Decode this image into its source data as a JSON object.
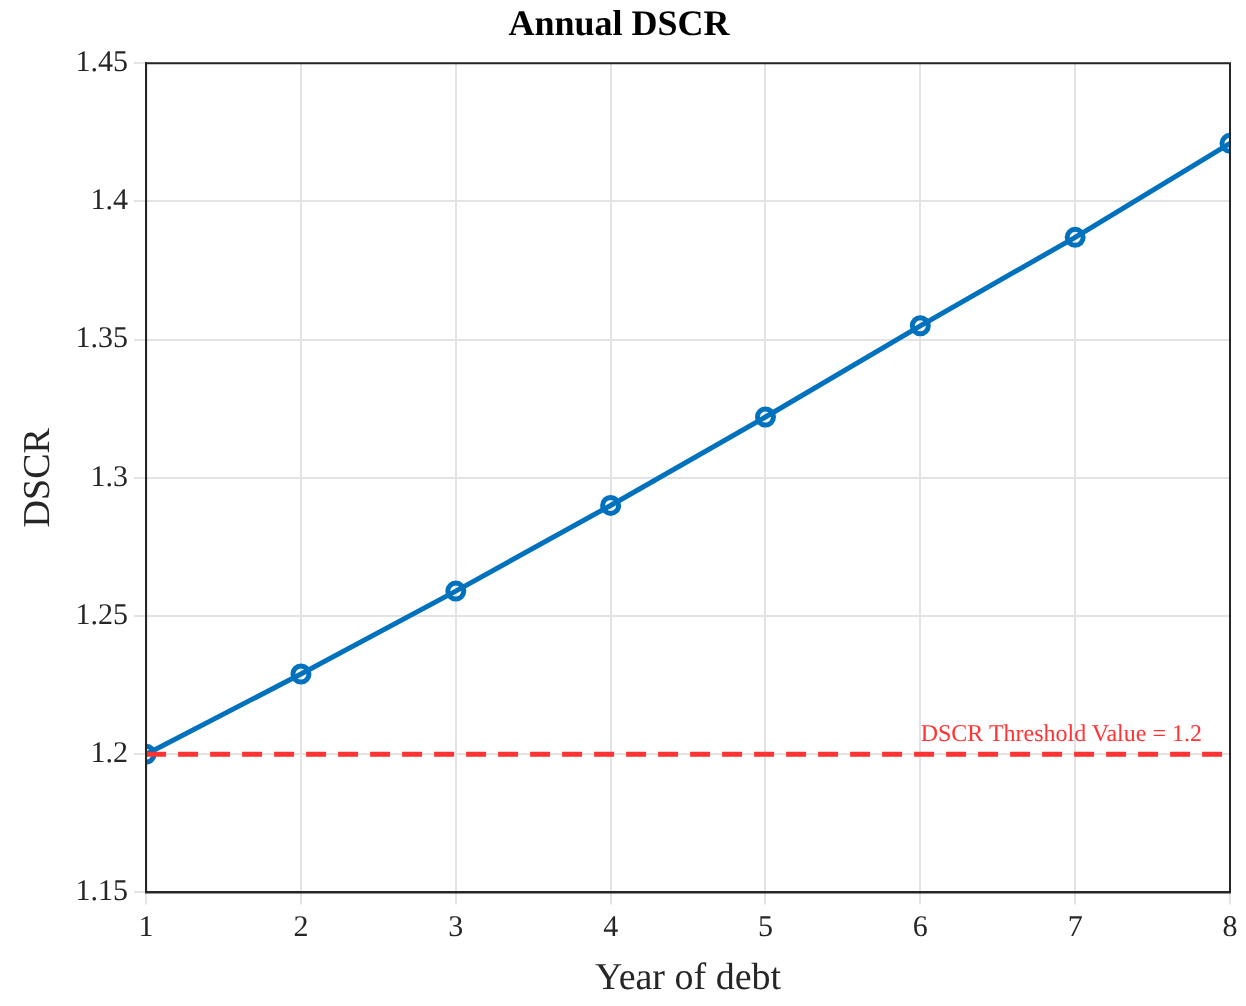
{
  "chart_data": {
    "type": "line",
    "title": "Annual DSCR",
    "xlabel": "Year of debt",
    "ylabel": "DSCR",
    "x": [
      1,
      2,
      3,
      4,
      5,
      6,
      7,
      8
    ],
    "series": [
      {
        "color": "#0072bd",
        "values": [
          1.2,
          1.229,
          1.259,
          1.29,
          1.322,
          1.355,
          1.387,
          1.421
        ]
      }
    ],
    "xlim": [
      1,
      8
    ],
    "xticks": [
      1,
      2,
      3,
      4,
      5,
      6,
      7,
      8
    ],
    "ylim": [
      1.15,
      1.45
    ],
    "yticks": [
      1.15,
      1.2,
      1.25,
      1.3,
      1.35,
      1.4,
      1.45
    ],
    "ref_lines": [
      {
        "axis": "y",
        "value": 1.2,
        "label": "DSCR Threshold Value = 1.2",
        "color": "#ff3333",
        "line_style": "dashed"
      }
    ],
    "grid": true,
    "legend": false,
    "marker": "circle",
    "line_style": "solid"
  }
}
